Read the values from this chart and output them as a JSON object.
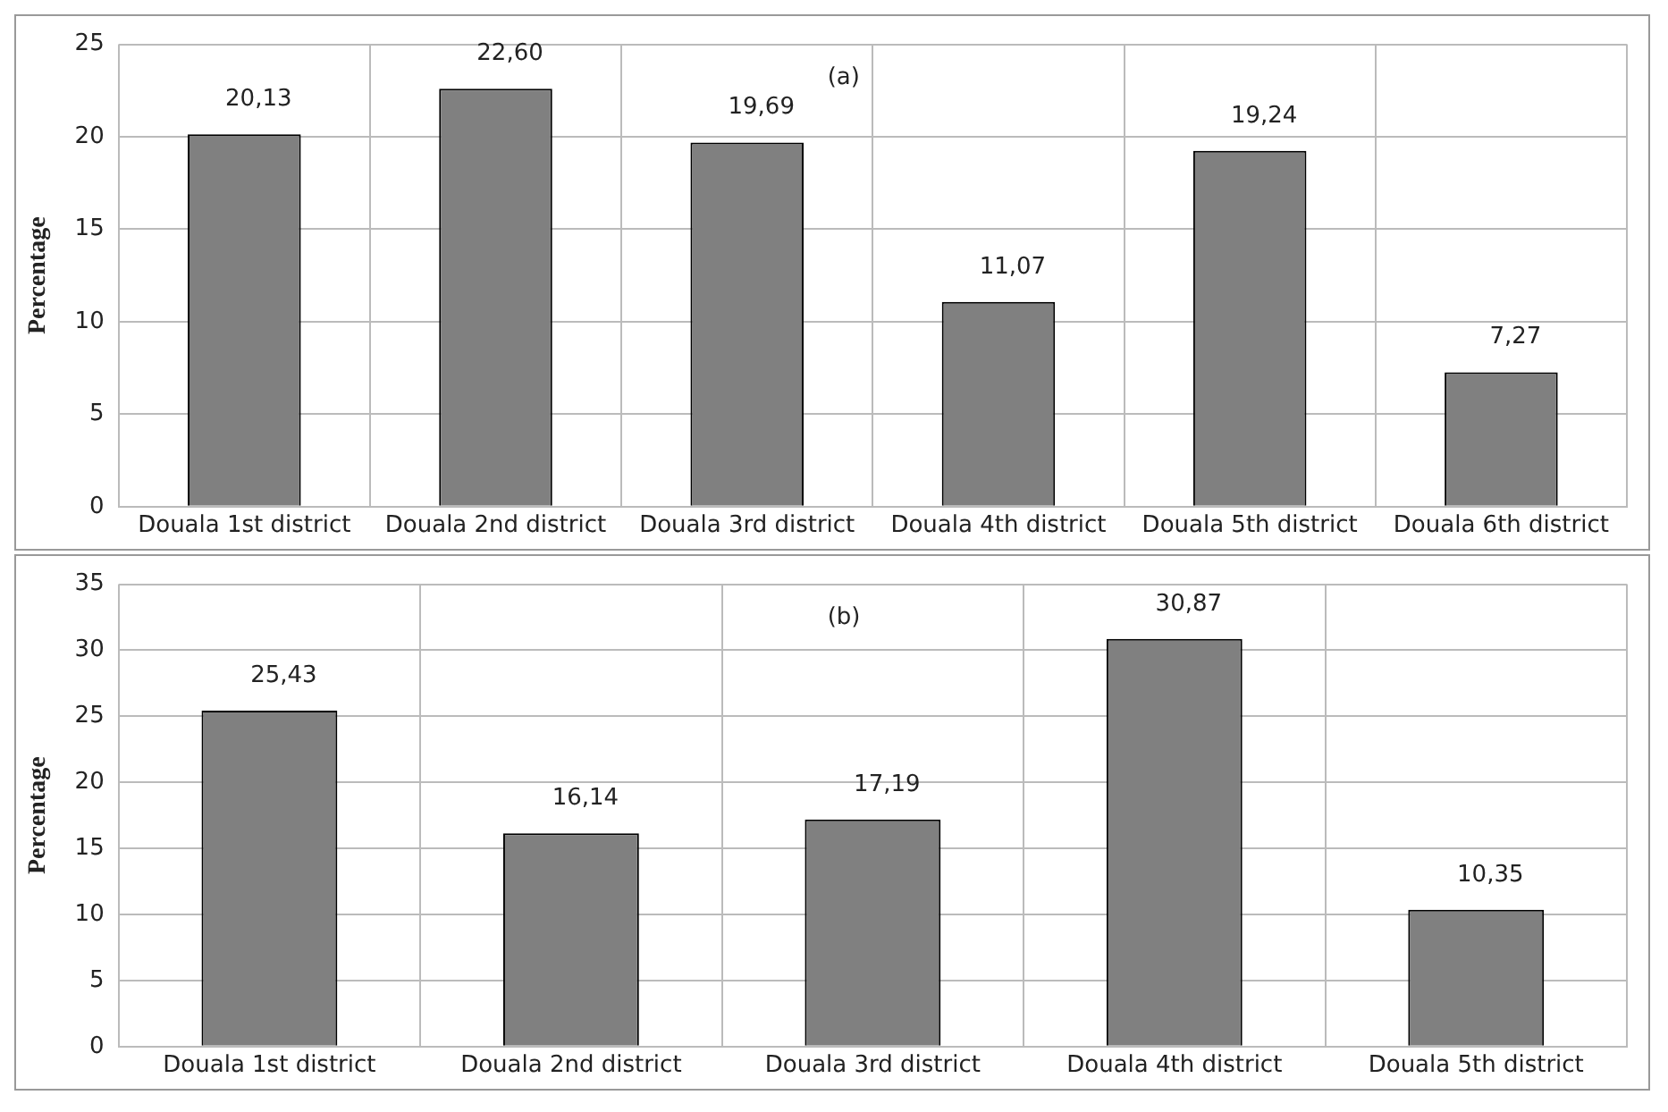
{
  "chart_data": [
    {
      "type": "bar",
      "ylabel": "Percentage",
      "categories": [
        "Douala 1st district",
        "Douala 2nd district",
        "Douala 3rd district",
        "Douala 4th district",
        "Douala 5th district",
        "Douala 6th district"
      ],
      "values": [
        20.13,
        22.6,
        19.69,
        11.07,
        19.24,
        7.27
      ],
      "value_labels": [
        "20,13",
        "22,60",
        "19,69",
        "11,07",
        "19,24",
        "7,27"
      ],
      "color": "#808080",
      "ylim": [
        0,
        25
      ],
      "yticks": [
        0,
        5,
        10,
        15,
        20,
        25
      ],
      "grid": true,
      "annotations": [
        "(a)"
      ]
    },
    {
      "type": "bar",
      "ylabel": "Percentage",
      "categories": [
        "Douala 1st district",
        "Douala 2nd district",
        "Douala 3rd district",
        "Douala 4th district",
        "Douala 5th district"
      ],
      "values": [
        25.43,
        16.14,
        17.19,
        30.87,
        10.35
      ],
      "value_labels": [
        "25,43",
        "16,14",
        "17,19",
        "30,87",
        "10,35"
      ],
      "color": "#808080",
      "ylim": [
        0,
        35
      ],
      "yticks": [
        0,
        5,
        10,
        15,
        20,
        25,
        30,
        35
      ],
      "grid": true,
      "annotations": [
        "(b)"
      ]
    }
  ]
}
